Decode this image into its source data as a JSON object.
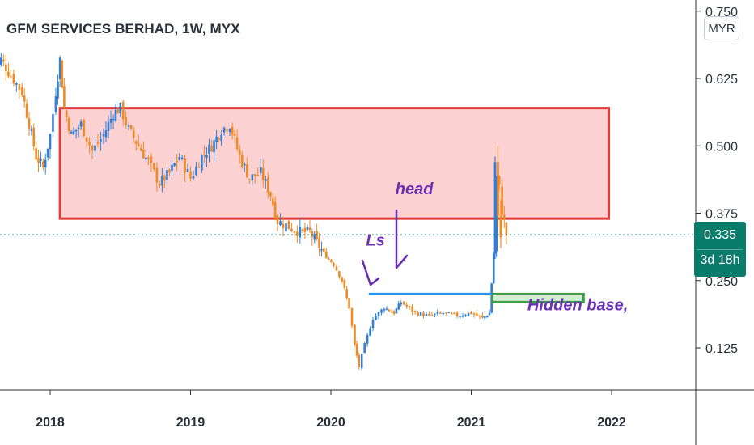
{
  "header": {
    "title": "GFM SERVICES BERHAD, 1W, MYX",
    "currency_button": "MYR"
  },
  "price_tag": {
    "price": "0.335",
    "countdown": "3d 18h"
  },
  "colors": {
    "up": "#2f7fd8",
    "down": "#f08a24",
    "zone_fill": "#fcc9c9",
    "zone_border": "#e23b3b",
    "neckline": "#2196f3",
    "base_fill": "#d4ecd4",
    "base_border": "#3aa04a",
    "annotation": "#6a2fb4",
    "last_price": "#0a7c6b"
  },
  "chart_data": {
    "type": "candlestick",
    "title": "GFM SERVICES BERHAD, 1W, MYX",
    "x_ticks": [
      "2018",
      "2019",
      "2020",
      "2021",
      "2022"
    ],
    "y_ticks": [
      0.125,
      0.25,
      0.375,
      0.5,
      0.625,
      0.75
    ],
    "y_tick_labels": [
      "0.125",
      "0.250",
      "0.375",
      "0.500",
      "0.625",
      "0.750"
    ],
    "ylim": [
      0.05,
      0.76
    ],
    "xlim": [
      2017.6,
      2022.6
    ],
    "last_price": 0.335,
    "keypoints": [
      [
        2017.6,
        0.64
      ],
      [
        2017.65,
        0.66
      ],
      [
        2017.72,
        0.63
      ],
      [
        2017.8,
        0.6
      ],
      [
        2017.85,
        0.54
      ],
      [
        2017.9,
        0.48
      ],
      [
        2017.95,
        0.46
      ],
      [
        2018.0,
        0.52
      ],
      [
        2018.04,
        0.6
      ],
      [
        2018.07,
        0.66
      ],
      [
        2018.1,
        0.57
      ],
      [
        2018.15,
        0.52
      ],
      [
        2018.22,
        0.54
      ],
      [
        2018.3,
        0.49
      ],
      [
        2018.38,
        0.52
      ],
      [
        2018.45,
        0.56
      ],
      [
        2018.5,
        0.57
      ],
      [
        2018.56,
        0.53
      ],
      [
        2018.63,
        0.5
      ],
      [
        2018.7,
        0.47
      ],
      [
        2018.78,
        0.43
      ],
      [
        2018.85,
        0.45
      ],
      [
        2018.92,
        0.48
      ],
      [
        2019.0,
        0.44
      ],
      [
        2019.08,
        0.48
      ],
      [
        2019.15,
        0.5
      ],
      [
        2019.22,
        0.53
      ],
      [
        2019.28,
        0.54
      ],
      [
        2019.35,
        0.48
      ],
      [
        2019.42,
        0.44
      ],
      [
        2019.5,
        0.45
      ],
      [
        2019.57,
        0.41
      ],
      [
        2019.62,
        0.36
      ],
      [
        2019.7,
        0.35
      ],
      [
        2019.78,
        0.34
      ],
      [
        2019.85,
        0.34
      ],
      [
        2019.9,
        0.32
      ],
      [
        2019.95,
        0.3
      ],
      [
        2020.02,
        0.28
      ],
      [
        2020.08,
        0.25
      ],
      [
        2020.13,
        0.2
      ],
      [
        2020.17,
        0.13
      ],
      [
        2020.2,
        0.09
      ],
      [
        2020.24,
        0.13
      ],
      [
        2020.3,
        0.18
      ],
      [
        2020.38,
        0.2
      ],
      [
        2020.45,
        0.19
      ],
      [
        2020.5,
        0.21
      ],
      [
        2020.6,
        0.19
      ],
      [
        2020.7,
        0.185
      ],
      [
        2020.8,
        0.19
      ],
      [
        2020.9,
        0.185
      ],
      [
        2021.0,
        0.19
      ],
      [
        2021.08,
        0.18
      ],
      [
        2021.13,
        0.19
      ],
      [
        2021.16,
        0.3
      ],
      [
        2021.18,
        0.44
      ],
      [
        2021.2,
        0.42
      ],
      [
        2021.22,
        0.38
      ],
      [
        2021.25,
        0.335
      ]
    ],
    "zones": [
      {
        "kind": "resistance",
        "x0": 2018.07,
        "x1": 2021.98,
        "y0": 0.365,
        "y1": 0.57
      },
      {
        "kind": "hidden-base",
        "x0": 2021.15,
        "x1": 2021.8,
        "y0": 0.21,
        "y1": 0.225
      }
    ],
    "neckline": {
      "x0": 2020.27,
      "x1": 2021.15,
      "y": 0.225
    },
    "annotations": [
      {
        "text": "head",
        "x": 2020.46,
        "y": 0.41
      },
      {
        "text": "Ls",
        "x": 2020.25,
        "y": 0.315
      },
      {
        "text": "Hidden base,",
        "x": 2021.4,
        "y": 0.195
      }
    ]
  }
}
